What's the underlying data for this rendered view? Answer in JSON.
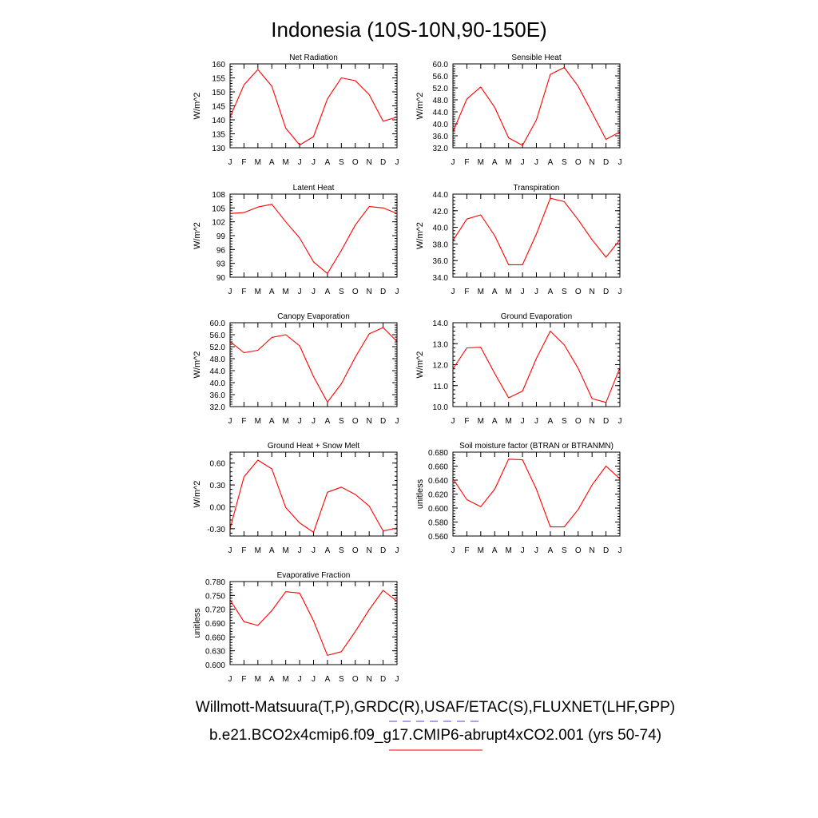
{
  "figure": {
    "title": "Indonesia (10S-10N,90-150E)",
    "legend": {
      "lines": [
        {
          "text": "Willmott-Matsuura(T,P),GRDC(R),USAF/ETAC(S),FLUXNET(LHF,GPP)",
          "color": "#4444ff",
          "dash": "dashed"
        },
        {
          "text": "b.e21.BCO2x4cmip6.f09_g17.CMIP6-abrupt4xCO2.001 (yrs 50-74)",
          "color": "#ff0000",
          "dash": "solid"
        }
      ]
    }
  },
  "chart_data": [
    {
      "type": "line",
      "title": "Net Radiation",
      "ylabel": "W/m^2",
      "categories": [
        "J",
        "F",
        "M",
        "A",
        "M",
        "J",
        "J",
        "A",
        "S",
        "O",
        "N",
        "D",
        "J"
      ],
      "ylim": [
        130,
        160
      ],
      "yticks": [
        130,
        135,
        140,
        145,
        150,
        155,
        160
      ],
      "ytick_labels": [
        "130",
        "135",
        "140",
        "145",
        "150",
        "155",
        "160"
      ],
      "series": [
        {
          "color": "#ff0000",
          "values": [
            141,
            152.5,
            158,
            152,
            137,
            131,
            134,
            147.5,
            155,
            154,
            149,
            139.5,
            141
          ]
        }
      ]
    },
    {
      "type": "line",
      "title": "Sensible Heat",
      "ylabel": "W/m^2",
      "categories": [
        "J",
        "F",
        "M",
        "A",
        "M",
        "J",
        "J",
        "A",
        "S",
        "O",
        "N",
        "D",
        "J"
      ],
      "ylim": [
        32,
        60
      ],
      "yticks": [
        32,
        36,
        40,
        44,
        48,
        52,
        56,
        60
      ],
      "ytick_labels": [
        "32.0",
        "36.0",
        "40.0",
        "44.0",
        "48.0",
        "52.0",
        "56.0",
        "60.0"
      ],
      "series": [
        {
          "color": "#ff0000",
          "values": [
            37.3,
            48.3,
            52.3,
            45.5,
            35.3,
            32.8,
            41.3,
            56.5,
            58.8,
            52.5,
            43.7,
            34.8,
            37.3
          ]
        }
      ]
    },
    {
      "type": "line",
      "title": "Latent Heat",
      "ylabel": "W/m^2",
      "categories": [
        "J",
        "F",
        "M",
        "A",
        "M",
        "J",
        "J",
        "A",
        "S",
        "O",
        "N",
        "D",
        "J"
      ],
      "ylim": [
        90,
        108
      ],
      "yticks": [
        90,
        93,
        96,
        99,
        102,
        105,
        108
      ],
      "ytick_labels": [
        "90",
        "93",
        "96",
        "99",
        "102",
        "105",
        "108"
      ],
      "series": [
        {
          "color": "#ff0000",
          "values": [
            103.8,
            104,
            105.2,
            105.8,
            102,
            98.5,
            93.3,
            90.8,
            95.8,
            101.3,
            105.3,
            105,
            103.8
          ]
        }
      ]
    },
    {
      "type": "line",
      "title": "Transpiration",
      "ylabel": "W/m^2",
      "categories": [
        "J",
        "F",
        "M",
        "A",
        "M",
        "J",
        "J",
        "A",
        "S",
        "O",
        "N",
        "D",
        "J"
      ],
      "ylim": [
        34,
        44
      ],
      "yticks": [
        34,
        36,
        38,
        40,
        42,
        44
      ],
      "ytick_labels": [
        "34.0",
        "36.0",
        "38.0",
        "40.0",
        "42.0",
        "44.0"
      ],
      "series": [
        {
          "color": "#ff0000",
          "values": [
            38.4,
            41,
            41.5,
            39,
            35.5,
            35.5,
            39.2,
            43.5,
            43.1,
            40.9,
            38.5,
            36.4,
            38.5
          ]
        }
      ]
    },
    {
      "type": "line",
      "title": "Canopy Evaporation",
      "ylabel": "W/m^2",
      "categories": [
        "J",
        "F",
        "M",
        "A",
        "M",
        "J",
        "J",
        "A",
        "S",
        "O",
        "N",
        "D",
        "J"
      ],
      "ylim": [
        32,
        60
      ],
      "yticks": [
        32,
        36,
        40,
        44,
        48,
        52,
        56,
        60
      ],
      "ytick_labels": [
        "32.0",
        "36.0",
        "40.0",
        "44.0",
        "48.0",
        "52.0",
        "56.0",
        "60.0"
      ],
      "series": [
        {
          "color": "#ff0000",
          "values": [
            53.7,
            50,
            50.8,
            55.1,
            56,
            52.3,
            42,
            33.5,
            39.6,
            48.5,
            56.3,
            58.4,
            53.7
          ]
        }
      ]
    },
    {
      "type": "line",
      "title": "Ground Evaporation",
      "ylabel": "W/m^2",
      "categories": [
        "J",
        "F",
        "M",
        "A",
        "M",
        "J",
        "J",
        "A",
        "S",
        "O",
        "N",
        "D",
        "J"
      ],
      "ylim": [
        10,
        14
      ],
      "yticks": [
        10,
        11,
        12,
        13,
        14
      ],
      "ytick_labels": [
        "10.0",
        "11.0",
        "12.0",
        "13.0",
        "14.0"
      ],
      "series": [
        {
          "color": "#ff0000",
          "values": [
            11.8,
            12.8,
            12.83,
            11.58,
            10.42,
            10.74,
            12.3,
            13.6,
            12.95,
            11.82,
            10.38,
            10.2,
            11.85
          ]
        }
      ]
    },
    {
      "type": "line",
      "title": "Ground Heat + Snow Melt",
      "ylabel": "W/m^2",
      "categories": [
        "J",
        "F",
        "M",
        "A",
        "M",
        "J",
        "J",
        "A",
        "S",
        "O",
        "N",
        "D",
        "J"
      ],
      "ylim": [
        -0.4,
        0.75
      ],
      "yticks": [
        -0.3,
        0,
        0.3,
        0.6
      ],
      "ytick_labels": [
        "-0.30",
        "0.00",
        "0.30",
        "0.60"
      ],
      "series": [
        {
          "color": "#ff0000",
          "values": [
            -0.3,
            0.41,
            0.64,
            0.52,
            -0.01,
            -0.22,
            -0.35,
            0.2,
            0.27,
            0.17,
            0.01,
            -0.33,
            -0.29
          ]
        }
      ]
    },
    {
      "type": "line",
      "title": "Soil moisture factor (BTRAN or BTRANMN)",
      "ylabel": "unitless",
      "categories": [
        "J",
        "F",
        "M",
        "A",
        "M",
        "J",
        "J",
        "A",
        "S",
        "O",
        "N",
        "D",
        "J"
      ],
      "ylim": [
        0.56,
        0.68
      ],
      "yticks": [
        0.56,
        0.58,
        0.6,
        0.62,
        0.64,
        0.66,
        0.68
      ],
      "ytick_labels": [
        "0.560",
        "0.580",
        "0.600",
        "0.620",
        "0.640",
        "0.660",
        "0.680"
      ],
      "series": [
        {
          "color": "#ff0000",
          "values": [
            0.642,
            0.612,
            0.602,
            0.627,
            0.67,
            0.669,
            0.627,
            0.573,
            0.573,
            0.598,
            0.633,
            0.66,
            0.642
          ]
        }
      ]
    },
    {
      "type": "line",
      "title": "Evaporative Fraction",
      "ylabel": "unitless",
      "categories": [
        "J",
        "F",
        "M",
        "A",
        "M",
        "J",
        "J",
        "A",
        "S",
        "O",
        "N",
        "D",
        "J"
      ],
      "ylim": [
        0.6,
        0.78
      ],
      "yticks": [
        0.6,
        0.63,
        0.66,
        0.69,
        0.72,
        0.75,
        0.78
      ],
      "ytick_labels": [
        "0.600",
        "0.630",
        "0.660",
        "0.690",
        "0.720",
        "0.750",
        "0.780"
      ],
      "series": [
        {
          "color": "#ff0000",
          "values": [
            0.74,
            0.693,
            0.685,
            0.717,
            0.758,
            0.755,
            0.695,
            0.62,
            0.628,
            0.672,
            0.719,
            0.761,
            0.737
          ]
        }
      ]
    }
  ]
}
